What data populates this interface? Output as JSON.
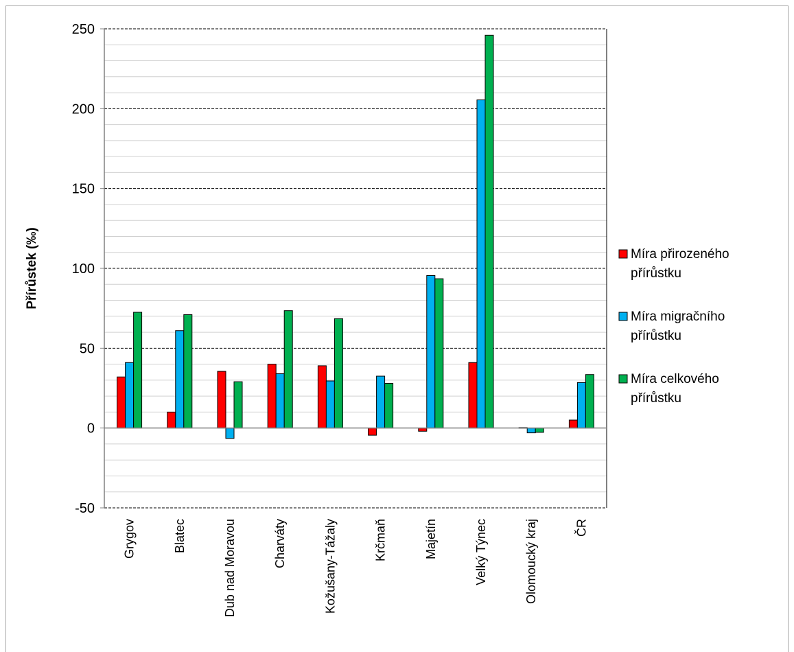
{
  "chart_data": {
    "type": "bar",
    "ylabel": "Přírůstek (‰)",
    "ylim": [
      -50,
      250
    ],
    "y_ticks": [
      250,
      200,
      150,
      100,
      50,
      0,
      -50
    ],
    "major_grid": "dashed",
    "minor_grid": true,
    "legend_position": "right",
    "categories": [
      "Grygov",
      "Blatec",
      "Dub nad Moravou",
      "Charváty",
      "Kožušany-Tážaly",
      "Krčmaň",
      "Majetín",
      "Velký Týnec",
      "Olomoucký kraj",
      "ČR"
    ],
    "series": [
      {
        "name": "Míra přirozeného přírůstku",
        "legend_lines": [
          "Míra přirozeného",
          "přírůstku"
        ],
        "color": "#ff0000",
        "values": [
          32,
          10,
          35.5,
          40,
          39,
          -4.5,
          -2,
          41,
          0.3,
          5
        ]
      },
      {
        "name": "Míra migračního přírůstku",
        "legend_lines": [
          "Míra migračního",
          "přírůstku"
        ],
        "color": "#00b0f0",
        "values": [
          41,
          61,
          -6.5,
          34,
          29.5,
          32.5,
          95.5,
          205.5,
          -3,
          28.5
        ]
      },
      {
        "name": "Míra celkového přírůstku",
        "legend_lines": [
          "Míra celkového",
          "přírůstku"
        ],
        "color": "#00b050",
        "values": [
          72.5,
          71,
          29,
          73.5,
          68.5,
          28,
          93.5,
          246,
          -2.7,
          33.5
        ]
      }
    ]
  }
}
